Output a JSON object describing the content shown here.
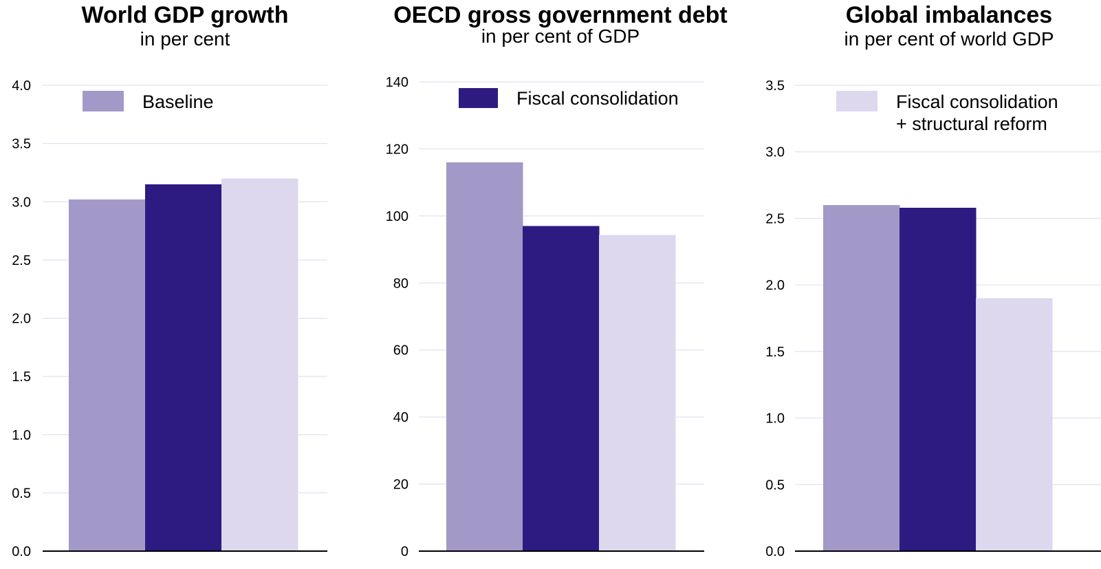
{
  "chart_data": [
    {
      "type": "bar",
      "title": "World GDP growth",
      "subtitle": "in per cent",
      "categories": [
        ""
      ],
      "series": [
        {
          "name": "Baseline",
          "values": [
            3.02
          ],
          "color": "#a399c8"
        },
        {
          "name": "Fiscal consolidation",
          "values": [
            3.15
          ],
          "color": "#2e1b82"
        },
        {
          "name": "Fiscal consolidation\n+ structural reform",
          "values": [
            3.2
          ],
          "color": "#ddd8ee"
        }
      ],
      "ylim": [
        0,
        4.0
      ],
      "yticks": [
        "0.0",
        "0.5",
        "1.0",
        "1.5",
        "2.0",
        "2.5",
        "3.0",
        "3.5",
        "4.0"
      ],
      "grid": true,
      "legend": "top-left"
    },
    {
      "type": "bar",
      "title": "OECD gross government debt",
      "subtitle": "in per cent of GDP",
      "categories": [
        ""
      ],
      "series": [
        {
          "name": "Baseline",
          "values": [
            116
          ],
          "color": "#a399c8"
        },
        {
          "name": "Fiscal consolidation",
          "values": [
            97
          ],
          "color": "#2e1b82"
        },
        {
          "name": "Fiscal consolidation\n+ structural reform",
          "values": [
            94.3
          ],
          "color": "#ddd8ee"
        }
      ],
      "ylim": [
        0,
        140
      ],
      "yticks": [
        "0",
        "20",
        "40",
        "60",
        "80",
        "100",
        "120",
        "140"
      ],
      "grid": true,
      "legend": "top-left"
    },
    {
      "type": "bar",
      "title": "Global imbalances",
      "subtitle": "in per cent of world GDP",
      "categories": [
        ""
      ],
      "series": [
        {
          "name": "Baseline",
          "values": [
            2.6
          ],
          "color": "#a399c8"
        },
        {
          "name": "Fiscal consolidation",
          "values": [
            2.58
          ],
          "color": "#2e1b82"
        },
        {
          "name": "Fiscal consolidation\n+ structural reform",
          "values": [
            1.9
          ],
          "color": "#ddd8ee"
        }
      ],
      "ylim": [
        0,
        3.5
      ],
      "yticks": [
        "0.0",
        "0.5",
        "1.0",
        "1.5",
        "2.0",
        "2.5",
        "3.0",
        "3.5"
      ],
      "grid": true,
      "legend": "top-left"
    }
  ],
  "legend": {
    "baseline": "Baseline",
    "fiscal": "Fiscal consolidation",
    "reform_line1": "Fiscal consolidation",
    "reform_line2": "+ structural reform"
  }
}
